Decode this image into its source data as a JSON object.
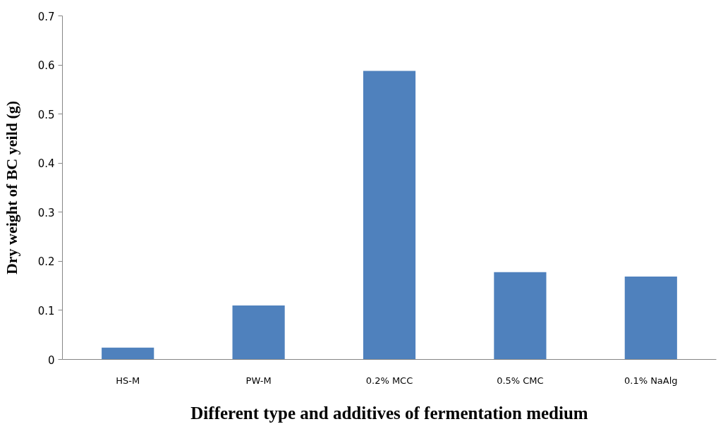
{
  "chart_data": {
    "type": "bar",
    "xlabel": "Different type and additives of fermentation medium",
    "ylabel": "Dry weight of BC yeild (g)",
    "categories": [
      "HS-M",
      "PW-M",
      "0.2% MCC",
      "0.5% CMC",
      "0.1% NaAlg"
    ],
    "values": [
      0.024,
      0.11,
      0.588,
      0.178,
      0.169
    ],
    "color": "#4f81bd",
    "ylim": [
      0,
      0.7
    ],
    "yticks": [
      0,
      0.1,
      0.2,
      0.3,
      0.4,
      0.5,
      0.6,
      0.7
    ],
    "grid": false
  }
}
